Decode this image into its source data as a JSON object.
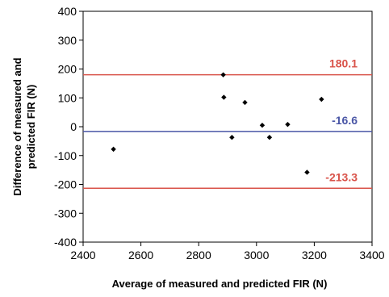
{
  "chart_data": {
    "type": "scatter",
    "xlabel": "Average of measured and predicted FIR (N)",
    "ylabel_lines": [
      "Difference of measured and",
      "predicted FIR (N)"
    ],
    "xlim": [
      2400,
      3400
    ],
    "ylim": [
      -400,
      400
    ],
    "x_ticks": [
      2400,
      2600,
      2800,
      3000,
      3200,
      3400
    ],
    "y_ticks": [
      -400,
      -300,
      -200,
      -100,
      0,
      100,
      200,
      300,
      400
    ],
    "grid": false,
    "points": [
      {
        "x": 2505,
        "y": -78
      },
      {
        "x": 2885,
        "y": 180
      },
      {
        "x": 2887,
        "y": 102
      },
      {
        "x": 2915,
        "y": -37
      },
      {
        "x": 2960,
        "y": 84
      },
      {
        "x": 3020,
        "y": 5
      },
      {
        "x": 3045,
        "y": -37
      },
      {
        "x": 3108,
        "y": 8
      },
      {
        "x": 3175,
        "y": -158
      },
      {
        "x": 3225,
        "y": 95
      }
    ],
    "reference_lines": [
      {
        "y": 180.1,
        "label": "180.1",
        "color": "#d9534a"
      },
      {
        "y": -16.6,
        "label": "-16.6",
        "color": "#4a56a6"
      },
      {
        "y": -213.3,
        "label": "-213.3",
        "color": "#d9534a"
      }
    ],
    "colors": {
      "axis": "#000000",
      "marker": "#000000"
    }
  }
}
